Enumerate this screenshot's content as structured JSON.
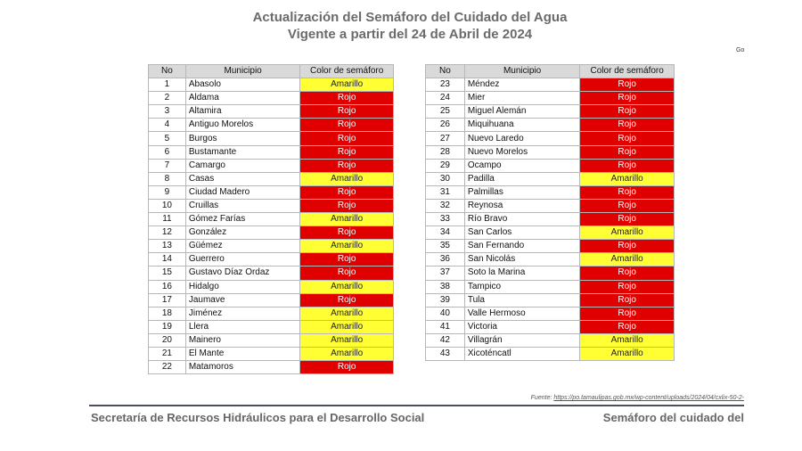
{
  "title": {
    "line1": "Actualización del Semáforo del Cuidado del Agua",
    "line2": "Vigente a partir del 24 de Abril de 2024"
  },
  "corner_text": "Go",
  "headers": {
    "no": "No",
    "municipio": "Municipio",
    "color": "Color de semáforo"
  },
  "left_rows": [
    [
      "1",
      "Abasolo",
      "Amarillo"
    ],
    [
      "2",
      "Aldama",
      "Rojo"
    ],
    [
      "3",
      "Altamira",
      "Rojo"
    ],
    [
      "4",
      "Antiguo Morelos",
      "Rojo"
    ],
    [
      "5",
      "Burgos",
      "Rojo"
    ],
    [
      "6",
      "Bustamante",
      "Rojo"
    ],
    [
      "7",
      "Camargo",
      "Rojo"
    ],
    [
      "8",
      "Casas",
      "Amarillo"
    ],
    [
      "9",
      "Ciudad Madero",
      "Rojo"
    ],
    [
      "10",
      "Cruillas",
      "Rojo"
    ],
    [
      "11",
      "Gómez Farías",
      "Amarillo"
    ],
    [
      "12",
      "González",
      "Rojo"
    ],
    [
      "13",
      "Güémez",
      "Amarillo"
    ],
    [
      "14",
      "Guerrero",
      "Rojo"
    ],
    [
      "15",
      "Gustavo Díaz Ordaz",
      "Rojo"
    ],
    [
      "16",
      "Hidalgo",
      "Amarillo"
    ],
    [
      "17",
      "Jaumave",
      "Rojo"
    ],
    [
      "18",
      "Jiménez",
      "Amarillo"
    ],
    [
      "19",
      "Llera",
      "Amarillo"
    ],
    [
      "20",
      "Mainero",
      "Amarillo"
    ],
    [
      "21",
      "El Mante",
      "Amarillo"
    ],
    [
      "22",
      "Matamoros",
      "Rojo"
    ]
  ],
  "right_rows": [
    [
      "23",
      "Méndez",
      "Rojo"
    ],
    [
      "24",
      "Mier",
      "Rojo"
    ],
    [
      "25",
      "Miguel Alemán",
      "Rojo"
    ],
    [
      "26",
      "Miquihuana",
      "Rojo"
    ],
    [
      "27",
      "Nuevo Laredo",
      "Rojo"
    ],
    [
      "28",
      "Nuevo Morelos",
      "Rojo"
    ],
    [
      "29",
      "Ocampo",
      "Rojo"
    ],
    [
      "30",
      "Padilla",
      "Amarillo"
    ],
    [
      "31",
      "Palmillas",
      "Rojo"
    ],
    [
      "32",
      "Reynosa",
      "Rojo"
    ],
    [
      "33",
      "Río Bravo",
      "Rojo"
    ],
    [
      "34",
      "San Carlos",
      "Amarillo"
    ],
    [
      "35",
      "San Fernando",
      "Rojo"
    ],
    [
      "36",
      "San Nicolás",
      "Amarillo"
    ],
    [
      "37",
      "Soto la Marina",
      "Rojo"
    ],
    [
      "38",
      "Tampico",
      "Rojo"
    ],
    [
      "39",
      "Tula",
      "Rojo"
    ],
    [
      "40",
      "Valle Hermoso",
      "Rojo"
    ],
    [
      "41",
      "Victoria",
      "Rojo"
    ],
    [
      "42",
      "Villagrán",
      "Amarillo"
    ],
    [
      "43",
      "Xicoténcatl",
      "Amarillo"
    ]
  ],
  "colors": {
    "Rojo": "#e00000",
    "Amarillo": "#ffff33"
  },
  "source": {
    "label": "Fuente:",
    "url": "https://po.tamaulipas.gob.mx/wp-content/uploads/2024/04/cxlix-50-2-"
  },
  "footer": {
    "left": "Secretaría de Recursos Hidráulicos para el Desarrollo Social",
    "right": "Semáforo del cuidado del"
  }
}
